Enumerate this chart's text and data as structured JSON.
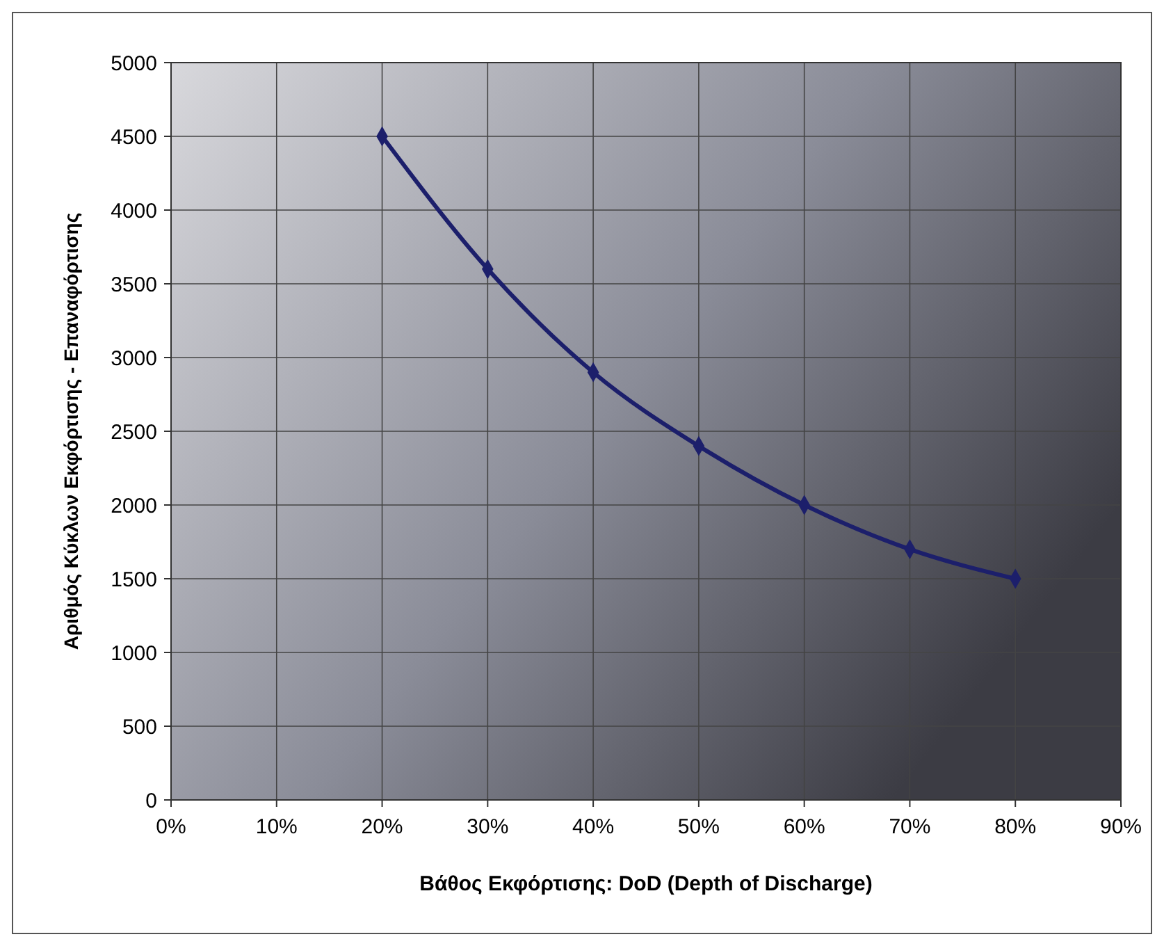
{
  "chart_data": {
    "type": "line",
    "xlabel": "Βάθος Εκφόρτισης: DoD (Depth of Discharge)",
    "ylabel": "Αριθμός Κύκλων Εκφόρτισης - Επαναφόρτισης",
    "x": [
      20,
      30,
      40,
      50,
      60,
      70,
      80
    ],
    "series": [
      {
        "color": "#1c1f6b",
        "values": [
          4500,
          3600,
          2900,
          2400,
          2000,
          1700,
          1500
        ]
      }
    ],
    "xlim": [
      0,
      90
    ],
    "xticks": [
      {
        "value": 0,
        "label": "0%"
      },
      {
        "value": 10,
        "label": "10%"
      },
      {
        "value": 20,
        "label": "20%"
      },
      {
        "value": 30,
        "label": "30%"
      },
      {
        "value": 40,
        "label": "40%"
      },
      {
        "value": 50,
        "label": "50%"
      },
      {
        "value": 60,
        "label": "60%"
      },
      {
        "value": 70,
        "label": "70%"
      },
      {
        "value": 80,
        "label": "80%"
      },
      {
        "value": 90,
        "label": "90%"
      }
    ],
    "ylim": [
      0,
      5000
    ],
    "yticks": [
      0,
      500,
      1000,
      1500,
      2000,
      2500,
      3000,
      3500,
      4000,
      4500,
      5000
    ],
    "grid": true,
    "marker": "diamond",
    "line_style": "solid"
  }
}
